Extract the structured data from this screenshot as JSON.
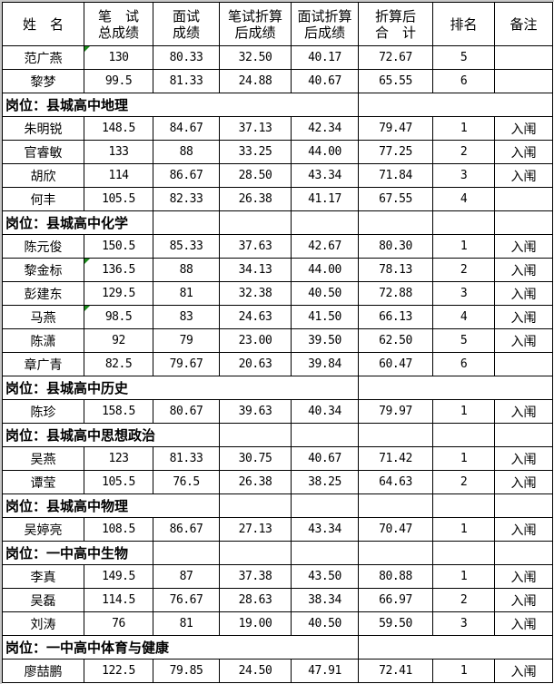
{
  "header": [
    "姓　名",
    "笔　试\n总成绩",
    "面试\n成绩",
    "笔试折算\n后成绩",
    "面试折算\n后成绩",
    "折算后\n合　计",
    "排名",
    "备注"
  ],
  "groups": [
    {
      "title": "",
      "rows": [
        [
          "范广燕",
          "130",
          "80.33",
          "32.50",
          "40.17",
          "72.67",
          "5",
          ""
        ],
        [
          "黎梦",
          "99.5",
          "81.33",
          "24.88",
          "40.67",
          "65.55",
          "6",
          ""
        ]
      ]
    },
    {
      "title": "岗位：县城高中地理",
      "rows": [
        [
          "朱明锐",
          "148.5",
          "84.67",
          "37.13",
          "42.34",
          "79.47",
          "1",
          "入闱"
        ],
        [
          "官睿敏",
          "133",
          "88",
          "33.25",
          "44.00",
          "77.25",
          "2",
          "入闱"
        ],
        [
          "胡欣",
          "114",
          "86.67",
          "28.50",
          "43.34",
          "71.84",
          "3",
          "入闱"
        ],
        [
          "何丰",
          "105.5",
          "82.33",
          "26.38",
          "41.17",
          "67.55",
          "4",
          ""
        ]
      ]
    },
    {
      "title": "岗位：县城高中化学",
      "rows": [
        [
          "陈元俊",
          "150.5",
          "85.33",
          "37.63",
          "42.67",
          "80.30",
          "1",
          "入闱"
        ],
        [
          "黎金标",
          "136.5",
          "88",
          "34.13",
          "44.00",
          "78.13",
          "2",
          "入闱"
        ],
        [
          "彭建东",
          "129.5",
          "81",
          "32.38",
          "40.50",
          "72.88",
          "3",
          "入闱"
        ],
        [
          "马燕",
          "98.5",
          "83",
          "24.63",
          "41.50",
          "66.13",
          "4",
          "入闱"
        ],
        [
          "陈潇",
          "92",
          "79",
          "23.00",
          "39.50",
          "62.50",
          "5",
          "入闱"
        ],
        [
          "章广青",
          "82.5",
          "79.67",
          "20.63",
          "39.84",
          "60.47",
          "6",
          ""
        ]
      ]
    },
    {
      "title": "岗位：县城高中历史",
      "rows": [
        [
          "陈珍",
          "158.5",
          "80.67",
          "39.63",
          "40.34",
          "79.97",
          "1",
          "入闱"
        ]
      ]
    },
    {
      "title": "岗位：县城高中思想政治",
      "rows": [
        [
          "吴燕",
          "123",
          "81.33",
          "30.75",
          "40.67",
          "71.42",
          "1",
          "入闱"
        ],
        [
          "谭莹",
          "105.5",
          "76.5",
          "26.38",
          "38.25",
          "64.63",
          "2",
          "入闱"
        ]
      ]
    },
    {
      "title": "岗位：县城高中物理",
      "rows": [
        [
          "吴婷亮",
          "108.5",
          "86.67",
          "27.13",
          "43.34",
          "70.47",
          "1",
          "入闱"
        ]
      ]
    },
    {
      "title": "岗位：一中高中生物",
      "rows": [
        [
          "李真",
          "149.5",
          "87",
          "37.38",
          "43.50",
          "80.88",
          "1",
          "入闱"
        ],
        [
          "吴磊",
          "114.5",
          "76.67",
          "28.63",
          "38.34",
          "66.97",
          "2",
          "入闱"
        ],
        [
          "刘涛",
          "76",
          "81",
          "19.00",
          "40.50",
          "59.50",
          "3",
          "入闱"
        ]
      ]
    },
    {
      "title": "岗位：一中高中体育与健康",
      "rows": [
        [
          "廖喆鹏",
          "122.5",
          "79.85",
          "24.50",
          "47.91",
          "72.41",
          "1",
          "入闱"
        ]
      ]
    }
  ]
}
